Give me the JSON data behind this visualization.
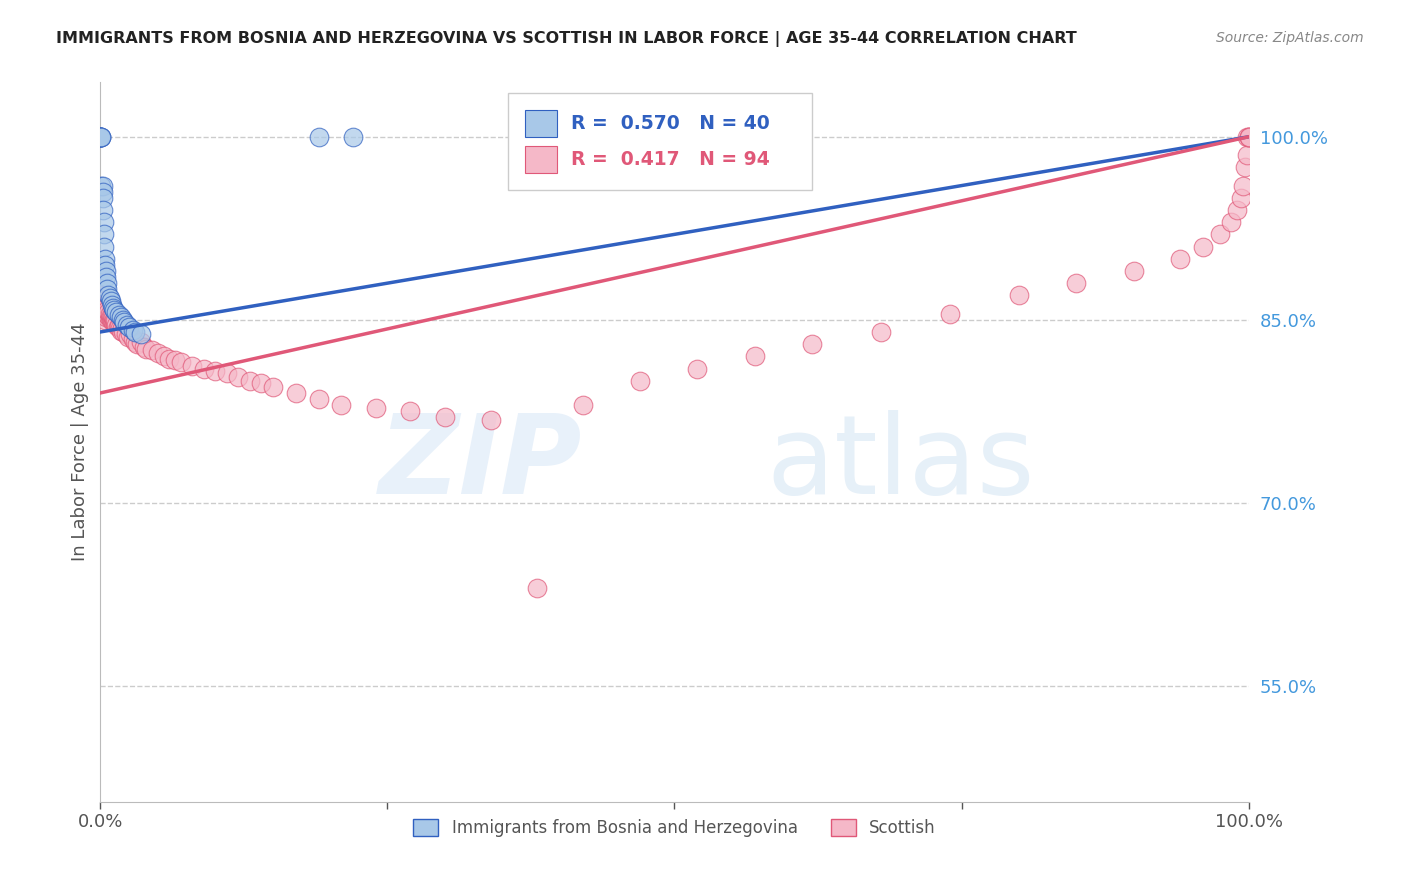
{
  "title": "IMMIGRANTS FROM BOSNIA AND HERZEGOVINA VS SCOTTISH IN LABOR FORCE | AGE 35-44 CORRELATION CHART",
  "source": "Source: ZipAtlas.com",
  "ylabel": "In Labor Force | Age 35-44",
  "xlim": [
    0.0,
    1.0
  ],
  "ylim": [
    0.455,
    1.045
  ],
  "ytick_right": [
    1.0,
    0.85,
    0.7,
    0.55
  ],
  "ytick_right_labels": [
    "100.0%",
    "85.0%",
    "70.0%",
    "55.0%"
  ],
  "blue_R": 0.57,
  "blue_N": 40,
  "pink_R": 0.417,
  "pink_N": 94,
  "blue_color": "#a8c8e8",
  "blue_line_color": "#3060c0",
  "pink_color": "#f5b8c8",
  "pink_line_color": "#e05878",
  "legend_label_blue": "Immigrants from Bosnia and Herzegovina",
  "legend_label_pink": "Scottish",
  "grid_color": "#cccccc",
  "background_color": "#ffffff",
  "title_color": "#222222",
  "right_axis_color": "#4499dd",
  "blue_x": [
    0.0,
    0.0,
    0.0,
    0.0,
    0.0,
    0.001,
    0.001,
    0.001,
    0.001,
    0.002,
    0.002,
    0.002,
    0.002,
    0.003,
    0.003,
    0.003,
    0.004,
    0.004,
    0.005,
    0.005,
    0.006,
    0.006,
    0.007,
    0.008,
    0.009,
    0.01,
    0.011,
    0.012,
    0.014,
    0.016,
    0.018,
    0.02,
    0.021,
    0.023,
    0.025,
    0.028,
    0.03,
    0.035,
    0.19,
    0.22
  ],
  "blue_y": [
    1.0,
    1.0,
    1.0,
    1.0,
    1.0,
    1.0,
    1.0,
    1.0,
    0.96,
    0.96,
    0.955,
    0.95,
    0.94,
    0.93,
    0.92,
    0.91,
    0.9,
    0.895,
    0.89,
    0.885,
    0.88,
    0.875,
    0.87,
    0.868,
    0.865,
    0.862,
    0.86,
    0.858,
    0.856,
    0.854,
    0.852,
    0.85,
    0.848,
    0.846,
    0.844,
    0.842,
    0.84,
    0.838,
    1.0,
    1.0
  ],
  "pink_x": [
    0.0,
    0.0,
    0.001,
    0.001,
    0.001,
    0.002,
    0.002,
    0.002,
    0.003,
    0.003,
    0.003,
    0.004,
    0.004,
    0.004,
    0.005,
    0.005,
    0.005,
    0.006,
    0.006,
    0.007,
    0.007,
    0.008,
    0.008,
    0.009,
    0.009,
    0.01,
    0.01,
    0.011,
    0.011,
    0.012,
    0.012,
    0.013,
    0.013,
    0.014,
    0.015,
    0.016,
    0.017,
    0.018,
    0.019,
    0.02,
    0.022,
    0.024,
    0.026,
    0.028,
    0.03,
    0.032,
    0.035,
    0.038,
    0.04,
    0.045,
    0.05,
    0.055,
    0.06,
    0.065,
    0.07,
    0.08,
    0.09,
    0.1,
    0.11,
    0.12,
    0.13,
    0.14,
    0.15,
    0.17,
    0.19,
    0.21,
    0.24,
    0.27,
    0.3,
    0.34,
    0.38,
    0.42,
    0.47,
    0.52,
    0.57,
    0.62,
    0.68,
    0.74,
    0.8,
    0.85,
    0.9,
    0.94,
    0.96,
    0.975,
    0.985,
    0.99,
    0.993,
    0.995,
    0.997,
    0.999,
    0.999,
    1.0,
    1.0,
    1.0
  ],
  "pink_y": [
    0.87,
    0.86,
    0.865,
    0.87,
    0.855,
    0.86,
    0.865,
    0.855,
    0.858,
    0.862,
    0.855,
    0.858,
    0.862,
    0.85,
    0.856,
    0.86,
    0.852,
    0.855,
    0.858,
    0.853,
    0.856,
    0.852,
    0.855,
    0.85,
    0.853,
    0.85,
    0.853,
    0.848,
    0.852,
    0.848,
    0.851,
    0.847,
    0.85,
    0.846,
    0.844,
    0.845,
    0.843,
    0.841,
    0.843,
    0.84,
    0.838,
    0.836,
    0.838,
    0.834,
    0.832,
    0.83,
    0.832,
    0.828,
    0.826,
    0.825,
    0.823,
    0.82,
    0.818,
    0.817,
    0.815,
    0.812,
    0.81,
    0.808,
    0.806,
    0.803,
    0.8,
    0.798,
    0.795,
    0.79,
    0.785,
    0.78,
    0.778,
    0.775,
    0.77,
    0.768,
    0.63,
    0.78,
    0.8,
    0.81,
    0.82,
    0.83,
    0.84,
    0.855,
    0.87,
    0.88,
    0.89,
    0.9,
    0.91,
    0.92,
    0.93,
    0.94,
    0.95,
    0.96,
    0.975,
    0.985,
    1.0,
    1.0,
    1.0,
    1.0
  ],
  "blue_line_x": [
    0.0,
    1.0
  ],
  "blue_line_y": [
    0.84,
    1.0
  ],
  "pink_line_x": [
    0.0,
    1.0
  ],
  "pink_line_y": [
    0.79,
    1.0
  ]
}
